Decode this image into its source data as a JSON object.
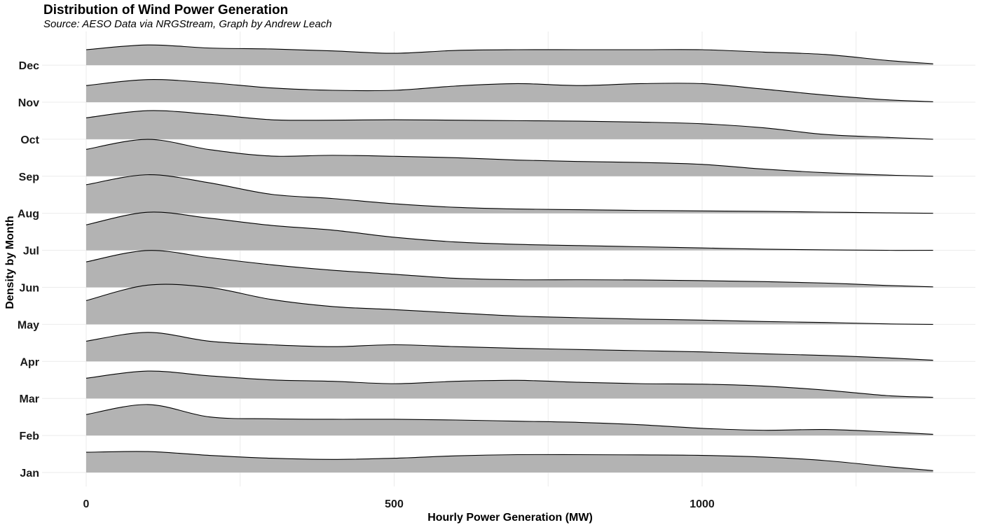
{
  "chart_data": {
    "type": "ridgeline",
    "title": "Distribution of Wind Power Generation",
    "subtitle": "Source: AESO Data via NRGStream, Graph by Andrew Leach",
    "xlabel": "Hourly Power Generation (MW)",
    "ylabel": "Density by Month",
    "xlim": [
      0,
      1380
    ],
    "x_ticks": [
      0,
      500,
      1000
    ],
    "grid": true,
    "fill_color": "#b3b3b3",
    "line_color": "#000000",
    "x": [
      0,
      100,
      200,
      300,
      400,
      500,
      600,
      700,
      800,
      900,
      1000,
      1100,
      1200,
      1300,
      1375
    ],
    "series": [
      {
        "name": "Jan",
        "values": [
          0.85,
          0.88,
          0.72,
          0.6,
          0.55,
          0.6,
          0.7,
          0.75,
          0.75,
          0.74,
          0.72,
          0.65,
          0.5,
          0.25,
          0.08
        ]
      },
      {
        "name": "Feb",
        "values": [
          0.88,
          1.3,
          0.78,
          0.7,
          0.68,
          0.68,
          0.65,
          0.6,
          0.55,
          0.45,
          0.3,
          0.22,
          0.25,
          0.15,
          0.05
        ]
      },
      {
        "name": "Mar",
        "values": [
          0.85,
          1.15,
          0.95,
          0.78,
          0.72,
          0.62,
          0.72,
          0.76,
          0.68,
          0.62,
          0.6,
          0.52,
          0.35,
          0.12,
          0.05
        ]
      },
      {
        "name": "Apr",
        "values": [
          0.85,
          1.22,
          0.85,
          0.7,
          0.62,
          0.7,
          0.62,
          0.55,
          0.5,
          0.45,
          0.4,
          0.32,
          0.25,
          0.15,
          0.05
        ]
      },
      {
        "name": "May",
        "values": [
          1.0,
          1.65,
          1.55,
          1.05,
          0.75,
          0.62,
          0.48,
          0.35,
          0.28,
          0.22,
          0.18,
          0.12,
          0.08,
          0.02,
          0.0
        ]
      },
      {
        "name": "Jun",
        "values": [
          1.07,
          1.55,
          1.25,
          0.95,
          0.72,
          0.55,
          0.38,
          0.32,
          0.32,
          0.31,
          0.28,
          0.24,
          0.18,
          0.08,
          0.02
        ]
      },
      {
        "name": "Jul",
        "values": [
          1.07,
          1.6,
          1.35,
          1.05,
          0.85,
          0.55,
          0.35,
          0.25,
          0.2,
          0.15,
          0.1,
          0.05,
          0.02,
          0.0,
          0.0
        ]
      },
      {
        "name": "Aug",
        "values": [
          1.2,
          1.62,
          1.28,
          0.8,
          0.62,
          0.4,
          0.25,
          0.18,
          0.15,
          0.12,
          0.1,
          0.08,
          0.05,
          0.02,
          0.0
        ]
      },
      {
        "name": "Sep",
        "values": [
          1.13,
          1.55,
          1.12,
          0.85,
          0.88,
          0.84,
          0.78,
          0.68,
          0.62,
          0.58,
          0.5,
          0.3,
          0.15,
          0.05,
          0.0
        ]
      },
      {
        "name": "Oct",
        "values": [
          0.9,
          1.2,
          1.05,
          0.82,
          0.8,
          0.82,
          0.8,
          0.78,
          0.76,
          0.72,
          0.65,
          0.48,
          0.2,
          0.08,
          0.0
        ]
      },
      {
        "name": "Nov",
        "values": [
          0.7,
          0.95,
          0.82,
          0.6,
          0.5,
          0.5,
          0.68,
          0.78,
          0.7,
          0.78,
          0.78,
          0.55,
          0.3,
          0.1,
          0.02
        ]
      },
      {
        "name": "Dec",
        "values": [
          0.65,
          0.85,
          0.72,
          0.68,
          0.6,
          0.5,
          0.62,
          0.65,
          0.65,
          0.65,
          0.65,
          0.55,
          0.45,
          0.2,
          0.06
        ]
      }
    ]
  }
}
